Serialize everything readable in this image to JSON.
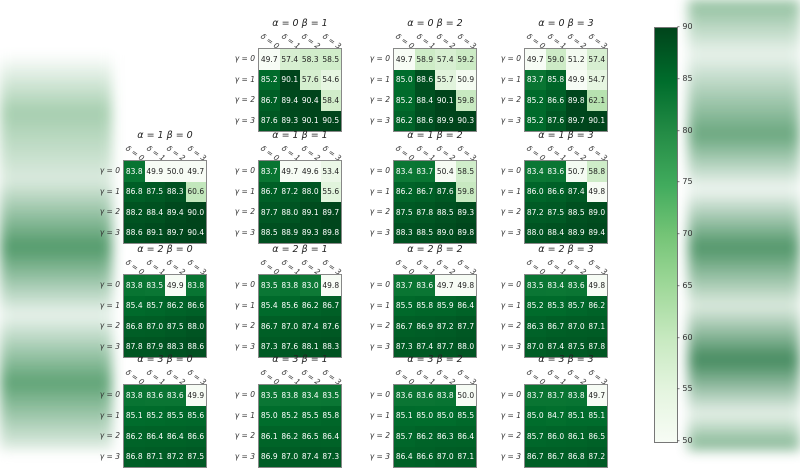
{
  "chart_data": {
    "type": "heatmap",
    "title": "",
    "layout": "4x4 grid of heatmaps indexed by alpha (rows) and beta (columns); alpha=0 row has only beta=1..3",
    "row_labels": [
      "γ = 0",
      "γ = 1",
      "γ = 2",
      "γ = 3"
    ],
    "col_labels": [
      "δ = 0",
      "δ = 1",
      "δ = 2",
      "δ = 3"
    ],
    "colorbar": {
      "min": 50,
      "max": 90,
      "ticks": [
        50,
        55,
        60,
        65,
        70,
        75,
        80,
        85,
        90
      ],
      "cmap": "Greens"
    },
    "panels": [
      {
        "title": "α = 0 β = 1",
        "alpha": 0,
        "beta": 1,
        "values": [
          [
            49.7,
            57.4,
            58.3,
            58.5
          ],
          [
            85.2,
            90.1,
            57.6,
            54.6
          ],
          [
            86.7,
            89.4,
            90.4,
            58.4
          ],
          [
            87.6,
            89.3,
            90.1,
            90.5
          ]
        ]
      },
      {
        "title": "α = 0 β = 2",
        "alpha": 0,
        "beta": 2,
        "values": [
          [
            49.7,
            58.9,
            57.4,
            59.2
          ],
          [
            85.0,
            88.6,
            55.7,
            50.9
          ],
          [
            85.2,
            88.4,
            90.1,
            59.8
          ],
          [
            86.2,
            88.6,
            89.9,
            90.3
          ]
        ]
      },
      {
        "title": "α = 0 β = 3",
        "alpha": 0,
        "beta": 3,
        "values": [
          [
            49.7,
            59.0,
            51.2,
            57.4
          ],
          [
            83.7,
            85.8,
            49.9,
            54.7
          ],
          [
            85.2,
            86.6,
            89.8,
            62.1
          ],
          [
            85.2,
            87.6,
            89.7,
            90.1
          ]
        ]
      },
      {
        "title": "α = 1 β = 0",
        "alpha": 1,
        "beta": 0,
        "values": [
          [
            83.8,
            49.9,
            50.0,
            49.7
          ],
          [
            86.8,
            87.5,
            88.3,
            60.6
          ],
          [
            88.2,
            88.4,
            89.4,
            90.0
          ],
          [
            88.6,
            89.1,
            89.7,
            90.4
          ]
        ]
      },
      {
        "title": "α = 1 β = 1",
        "alpha": 1,
        "beta": 1,
        "values": [
          [
            83.7,
            49.7,
            49.6,
            53.4
          ],
          [
            86.7,
            87.2,
            88.0,
            55.6
          ],
          [
            87.7,
            88.0,
            89.1,
            89.7
          ],
          [
            88.5,
            88.9,
            89.3,
            89.8
          ]
        ]
      },
      {
        "title": "α = 1 β = 2",
        "alpha": 1,
        "beta": 2,
        "values": [
          [
            83.4,
            83.7,
            50.4,
            58.5
          ],
          [
            86.2,
            86.7,
            87.6,
            59.8
          ],
          [
            87.5,
            87.8,
            88.5,
            89.3
          ],
          [
            88.3,
            88.5,
            89.0,
            89.8
          ]
        ]
      },
      {
        "title": "α = 1 β = 3",
        "alpha": 1,
        "beta": 3,
        "values": [
          [
            83.4,
            83.6,
            50.7,
            58.8
          ],
          [
            86.0,
            86.6,
            87.4,
            49.8
          ],
          [
            87.2,
            87.5,
            88.5,
            89.0
          ],
          [
            88.0,
            88.4,
            88.9,
            89.4
          ]
        ]
      },
      {
        "title": "α = 2 β = 0",
        "alpha": 2,
        "beta": 0,
        "values": [
          [
            83.8,
            83.5,
            49.9,
            83.8
          ],
          [
            85.4,
            85.7,
            86.2,
            86.6
          ],
          [
            86.8,
            87.0,
            87.5,
            88.0
          ],
          [
            87.8,
            87.9,
            88.3,
            88.6
          ]
        ]
      },
      {
        "title": "α = 2 β = 1",
        "alpha": 2,
        "beta": 1,
        "values": [
          [
            83.5,
            83.8,
            83.0,
            49.8
          ],
          [
            85.4,
            85.6,
            86.2,
            86.7
          ],
          [
            86.7,
            87.0,
            87.4,
            87.6
          ],
          [
            87.3,
            87.6,
            88.1,
            88.3
          ]
        ]
      },
      {
        "title": "α = 2 β = 2",
        "alpha": 2,
        "beta": 2,
        "values": [
          [
            83.7,
            83.6,
            49.7,
            49.8
          ],
          [
            85.5,
            85.8,
            85.9,
            86.4
          ],
          [
            86.7,
            86.9,
            87.2,
            87.7
          ],
          [
            87.3,
            87.4,
            87.7,
            88.0
          ]
        ]
      },
      {
        "title": "α = 2 β = 3",
        "alpha": 2,
        "beta": 3,
        "values": [
          [
            83.5,
            83.4,
            83.6,
            49.8
          ],
          [
            85.2,
            85.3,
            85.7,
            86.2
          ],
          [
            86.3,
            86.7,
            87.0,
            87.1
          ],
          [
            87.0,
            87.4,
            87.5,
            87.8
          ]
        ]
      },
      {
        "title": "α = 3 β = 0",
        "alpha": 3,
        "beta": 0,
        "values": [
          [
            83.8,
            83.6,
            83.6,
            49.9
          ],
          [
            85.1,
            85.2,
            85.5,
            85.6
          ],
          [
            86.2,
            86.4,
            86.4,
            86.6
          ],
          [
            86.8,
            87.1,
            87.2,
            87.5
          ]
        ]
      },
      {
        "title": "α = 3 β = 1",
        "alpha": 3,
        "beta": 1,
        "values": [
          [
            83.5,
            83.8,
            83.4,
            83.5
          ],
          [
            85.0,
            85.2,
            85.5,
            85.8
          ],
          [
            86.1,
            86.2,
            86.5,
            86.4
          ],
          [
            86.9,
            87.0,
            87.4,
            87.3
          ]
        ]
      },
      {
        "title": "α = 3 β = 2",
        "alpha": 3,
        "beta": 2,
        "values": [
          [
            83.6,
            83.6,
            83.8,
            50.0
          ],
          [
            85.1,
            85.0,
            85.0,
            85.5
          ],
          [
            85.7,
            86.2,
            86.3,
            86.4
          ],
          [
            86.4,
            86.6,
            87.0,
            87.1
          ]
        ]
      },
      {
        "title": "α = 3 β = 3",
        "alpha": 3,
        "beta": 3,
        "values": [
          [
            83.7,
            83.7,
            83.8,
            49.7
          ],
          [
            85.0,
            84.7,
            85.1,
            85.1
          ],
          [
            85.7,
            86.0,
            86.1,
            86.5
          ],
          [
            86.7,
            86.7,
            86.8,
            87.2
          ]
        ]
      }
    ]
  }
}
